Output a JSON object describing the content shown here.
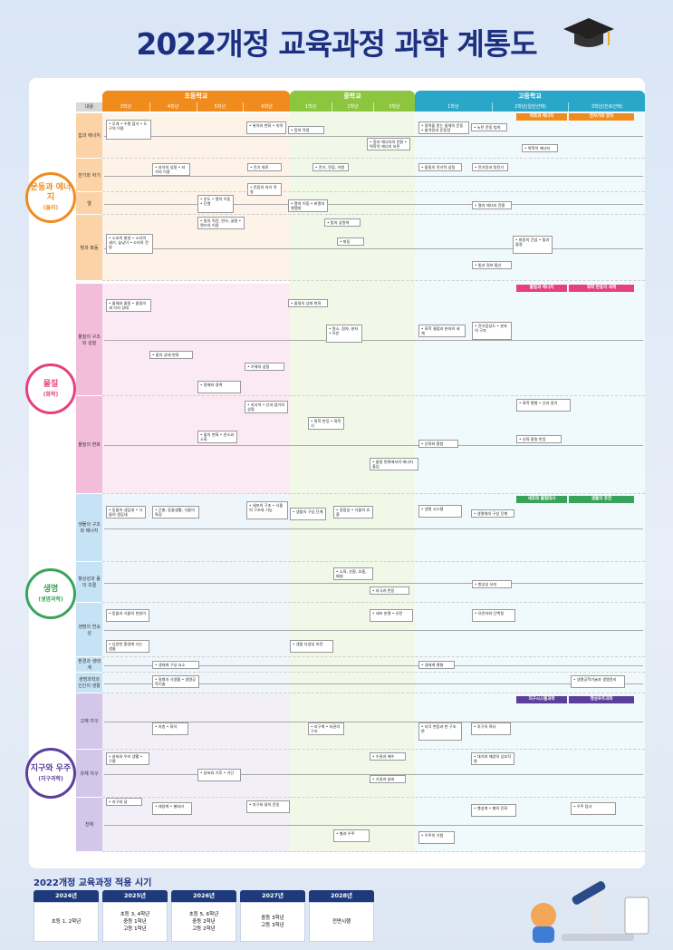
{
  "title": "2022개정 교육과정 과학 계통도",
  "header": {
    "content": "내용",
    "levels": [
      {
        "name": "초등학교",
        "grades": [
          "3학년",
          "4학년",
          "5학년",
          "6학년"
        ]
      },
      {
        "name": "중학교",
        "grades": [
          "1학년",
          "2학년",
          "3학년"
        ]
      },
      {
        "name": "고등학교",
        "grades": [
          "1학년",
          "2학년(일반선택)",
          "3학년(진로선택)"
        ]
      }
    ]
  },
  "sections": [
    {
      "name": "운동과 에너지",
      "sub": "(물리)",
      "tags": [
        "역학과 에너지",
        "전자기와 양자"
      ],
      "rows": [
        {
          "label": "힘과 에너지",
          "items": [
            "• 무게 • 수평 잡기 • 도구의 이용",
            "• 위치와 변화 • 속력",
            "• 힘의 작용",
            "• 중력을 받는 물체의 운동 • 충격량과 운동량",
            "• 힘과 에너지의 전환 • 역학적 에너지 보존",
            "• 뉴턴 운동 법칙",
            "• 역학적 에너지"
          ]
        },
        {
          "label": "전기와 자기",
          "items": [
            "• 자석의 성질 • 자석의 이용",
            "• 전기 회로",
            "• 전류의 자기 작용",
            "• 전기, 전류, 저항",
            "• 물질의 전기적 성질",
            "• 전기장과 정전기"
          ]
        },
        {
          "label": "열",
          "items": [
            "• 온도 • 열의 이동 • 단열",
            "• 열의 이동 • 비열과 열팽창",
            "• 열과 에너지 전환"
          ]
        },
        {
          "label": "빛과 파동",
          "items": [
            "• 소리의 발생 • 소리의 세기, 높낮이 • 소리의 전달",
            "• 빛의 직진, 반사, 굴절 • 렌즈의 이용",
            "• 빛의 삼원색",
            "• 파동",
            "• 파동의 간섭 • 빛과 물질",
            "• 빛과 정보 통신"
          ]
        }
      ]
    },
    {
      "name": "물질",
      "sub": "(화학)",
      "tags": [
        "물질과 에너지",
        "화학 반응의 세계"
      ],
      "rows": [
        {
          "label": "물질의 구조와 성질",
          "items": [
            "• 물체와 물질 • 물질의 세 가지 상태",
            "• 물질의 상태 변화",
            "• 원소, 원자, 분자 • 이온",
            "• 화학 결합과 분자의 세계",
            "• 전기음성도 • 분자의 구조",
            "• 물의 상태 변화",
            "• 기체의 성질",
            "• 용해와 용액"
          ]
        },
        {
          "label": "물질의 변화",
          "items": [
            "• 지시약 • 산과 염기의 성질",
            "• 물의 변화 • 연소와 소화",
            "• 화학 반응 • 화학식",
            "• 물질 변화에서의 에너지 출입",
            "• 산화와 환원",
            "• 화학 평형 • 산과 염기",
            "• 산화 환원 반응"
          ]
        }
      ]
    },
    {
      "name": "생명",
      "sub": "(생명과학)",
      "tags": [
        "세포와 물질대사",
        "생물의 유전"
      ],
      "rows": [
        {
          "label": "생물의 구조와 에너지",
          "items": [
            "• 동물의 생김새 • 식물의 생김새",
            "• 곤충, 동물생활, 식물의 특징",
            "• 세포의 구조 • 식물의 구조와 기능",
            "• 생물의 구성 단계",
            "• 광합성 • 식물의 호흡",
            "• 생명 시스템",
            "• 생명체의 구성 단계"
          ]
        },
        {
          "label": "항상성과 몸의 조절",
          "items": [
            "• 소화, 순환, 호흡, 배설",
            "• 자극과 반응",
            "• 항상성 유지"
          ]
        },
        {
          "label": "생명의 연속성",
          "items": [
            "• 동물과 식물의 한살이",
            "• 세포 분열 • 유전",
            "• 유전자와 단백질",
            "• 다양한 환경에 사는 생물",
            "• 생물 다양성 보전"
          ]
        },
        {
          "label": "환경과 생태계",
          "items": [
            "• 생태계 구성 요소",
            "• 생태계 평형"
          ]
        },
        {
          "label": "생명과학과 인간의 생활",
          "items": [
            "• 질병과 식생활 • 생명공학기술",
            "• 생명공학기술과 생명윤리"
          ]
        }
      ]
    },
    {
      "name": "지구와 우주",
      "sub": "(지구과학)",
      "tags": [
        "지구시스템과학",
        "행성우주과학"
      ],
      "rows": [
        {
          "label": "고체 지구",
          "items": [
            "• 지층 • 화석",
            "• 지구계 • 지권의 구조",
            "• 지각 변동과 판 구조론",
            "• 지구의 역사"
          ]
        },
        {
          "label": "유체 지구",
          "items": [
            "• 날씨와 우리 생활 • 구름",
            "• 날씨와 기후 • 기단",
            "• 수권과 해수",
            "• 기권과 날씨",
            "• 대기와 해양의 상호작용"
          ]
        },
        {
          "label": "천체",
          "items": [
            "• 지구와 달",
            "• 태양계 • 별자리",
            "• 지구와 달의 운동",
            "• 별과 우주",
            "• 우주의 기원",
            "• 행성계 • 별의 진화",
            "• 우주 탐사"
          ]
        }
      ]
    }
  ],
  "schedule": {
    "title": "2022개정 교육과정 적용 시기",
    "years": [
      {
        "year": "2024년",
        "lines": [
          "초등 1, 2학년"
        ]
      },
      {
        "year": "2025년",
        "lines": [
          "초등 3, 4학년",
          "중등 1학년",
          "고등 1학년"
        ]
      },
      {
        "year": "2026년",
        "lines": [
          "초등 5, 6학년",
          "중등 2학년",
          "고등 2학년"
        ]
      },
      {
        "year": "2027년",
        "lines": [
          "중등 3학년",
          "고등 3학년"
        ]
      },
      {
        "year": "2028년",
        "lines": [
          "전면시행"
        ]
      }
    ]
  }
}
